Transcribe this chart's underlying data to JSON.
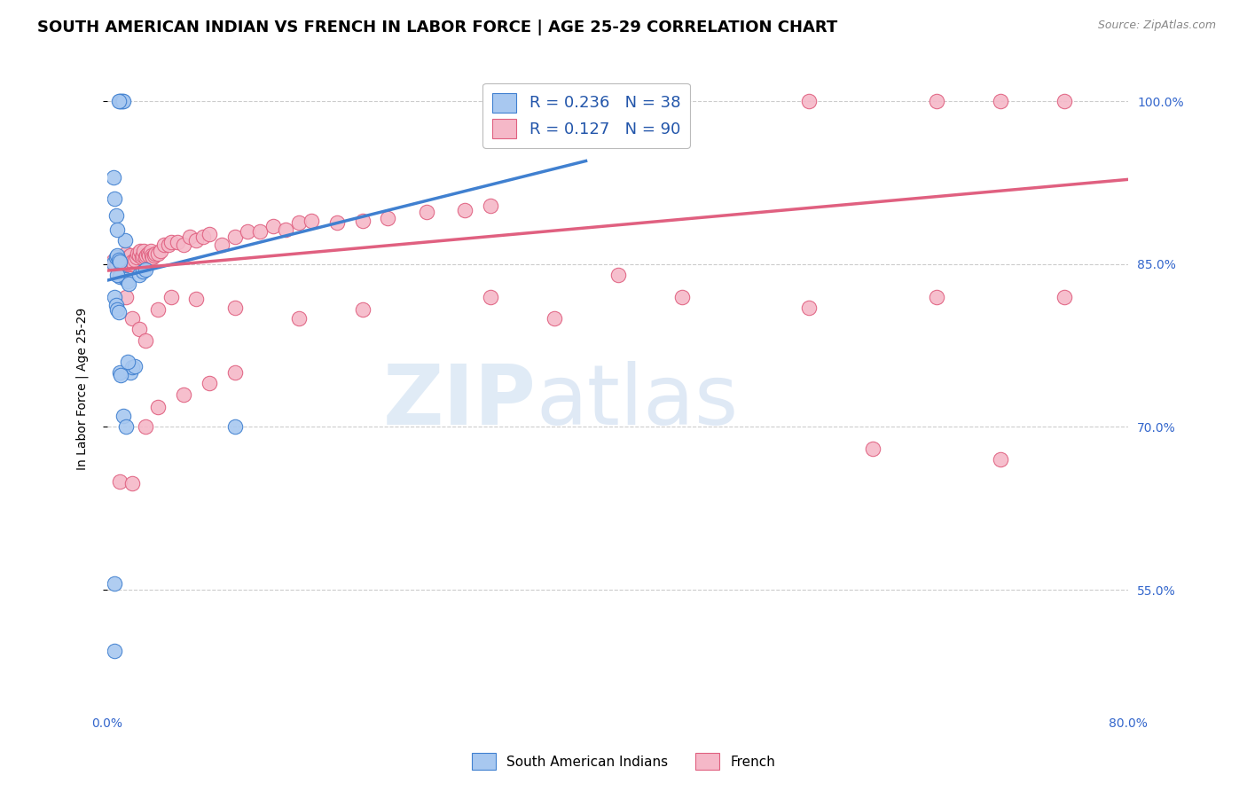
{
  "title": "SOUTH AMERICAN INDIAN VS FRENCH IN LABOR FORCE | AGE 25-29 CORRELATION CHART",
  "source": "Source: ZipAtlas.com",
  "ylabel": "In Labor Force | Age 25-29",
  "ytick_labels": [
    "55.0%",
    "70.0%",
    "85.0%",
    "100.0%"
  ],
  "ytick_values": [
    0.55,
    0.7,
    0.85,
    1.0
  ],
  "xlim": [
    0.0,
    0.8
  ],
  "ylim": [
    0.44,
    1.03
  ],
  "blue_fill": "#A8C8F0",
  "pink_fill": "#F5B8C8",
  "blue_edge": "#4080D0",
  "pink_edge": "#E06080",
  "blue_line": "#4080D0",
  "pink_line": "#E06080",
  "legend_r_blue": "0.236",
  "legend_n_blue": "38",
  "legend_r_pink": "0.127",
  "legend_n_pink": "90",
  "blue_line_x": [
    0.0,
    0.375
  ],
  "blue_line_y": [
    0.835,
    0.945
  ],
  "pink_line_x": [
    0.0,
    0.8
  ],
  "pink_line_y": [
    0.844,
    0.928
  ],
  "blue_x": [
    0.005,
    0.007,
    0.008,
    0.009,
    0.01,
    0.01,
    0.011,
    0.012,
    0.013,
    0.014,
    0.005,
    0.006,
    0.007,
    0.008,
    0.009,
    0.01,
    0.015,
    0.016,
    0.017,
    0.018,
    0.02,
    0.022,
    0.025,
    0.028,
    0.03,
    0.006,
    0.007,
    0.008,
    0.009,
    0.01,
    0.011,
    0.013,
    0.015,
    0.016,
    0.006,
    0.006,
    0.1,
    0.008
  ],
  "blue_y": [
    0.851,
    0.856,
    0.858,
    0.854,
    0.852,
    1.0,
    1.0,
    1.0,
    1.0,
    0.872,
    0.93,
    0.91,
    0.895,
    0.882,
    1.0,
    0.838,
    0.836,
    0.834,
    0.832,
    0.75,
    0.755,
    0.756,
    0.84,
    0.843,
    0.845,
    0.82,
    0.812,
    0.808,
    0.806,
    0.75,
    0.748,
    0.71,
    0.7,
    0.76,
    0.556,
    0.494,
    0.7,
    0.84
  ],
  "pink_x": [
    0.005,
    0.006,
    0.007,
    0.008,
    0.009,
    0.01,
    0.011,
    0.012,
    0.013,
    0.014,
    0.015,
    0.016,
    0.017,
    0.018,
    0.019,
    0.02,
    0.021,
    0.022,
    0.023,
    0.024,
    0.025,
    0.026,
    0.027,
    0.028,
    0.029,
    0.03,
    0.031,
    0.032,
    0.033,
    0.034,
    0.035,
    0.036,
    0.037,
    0.038,
    0.04,
    0.042,
    0.045,
    0.048,
    0.05,
    0.055,
    0.06,
    0.065,
    0.07,
    0.075,
    0.08,
    0.09,
    0.1,
    0.11,
    0.12,
    0.13,
    0.14,
    0.15,
    0.16,
    0.18,
    0.2,
    0.22,
    0.25,
    0.28,
    0.3,
    0.01,
    0.015,
    0.02,
    0.025,
    0.03,
    0.04,
    0.05,
    0.07,
    0.1,
    0.15,
    0.2,
    0.3,
    0.4,
    0.35,
    0.45,
    0.55,
    0.65,
    0.7,
    0.75,
    0.55,
    0.65,
    0.75,
    0.6,
    0.7,
    0.01,
    0.02,
    0.03,
    0.04,
    0.06,
    0.08,
    0.1
  ],
  "pink_y": [
    0.853,
    0.851,
    0.848,
    0.85,
    0.853,
    0.856,
    0.85,
    0.852,
    0.854,
    0.856,
    0.86,
    0.85,
    0.856,
    0.858,
    0.85,
    0.852,
    0.85,
    0.854,
    0.856,
    0.86,
    0.858,
    0.862,
    0.856,
    0.858,
    0.862,
    0.856,
    0.858,
    0.86,
    0.858,
    0.862,
    0.858,
    0.856,
    0.858,
    0.86,
    0.86,
    0.862,
    0.868,
    0.868,
    0.87,
    0.87,
    0.868,
    0.875,
    0.872,
    0.875,
    0.878,
    0.868,
    0.875,
    0.88,
    0.88,
    0.885,
    0.882,
    0.888,
    0.89,
    0.888,
    0.89,
    0.892,
    0.898,
    0.9,
    0.904,
    0.84,
    0.82,
    0.8,
    0.79,
    0.78,
    0.808,
    0.82,
    0.818,
    0.81,
    0.8,
    0.808,
    0.82,
    0.84,
    0.8,
    0.82,
    1.0,
    1.0,
    1.0,
    1.0,
    0.81,
    0.82,
    0.82,
    0.68,
    0.67,
    0.65,
    0.648,
    0.7,
    0.718,
    0.73,
    0.74,
    0.75
  ],
  "watermark_color": "#C8DCF0",
  "title_fontsize": 13,
  "axis_label_fontsize": 10,
  "tick_fontsize": 10,
  "legend_fontsize": 13,
  "source_fontsize": 9
}
